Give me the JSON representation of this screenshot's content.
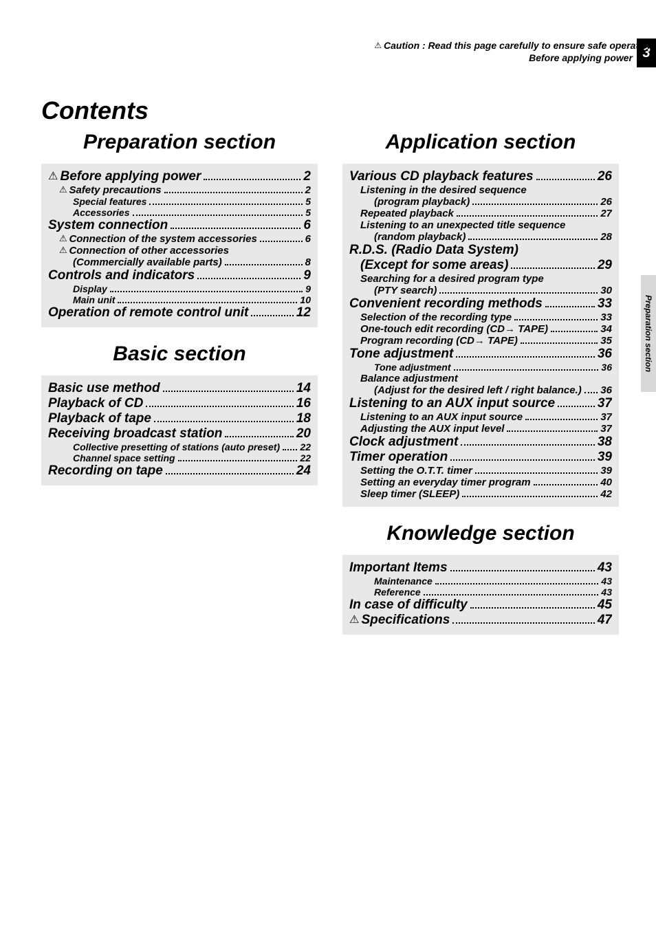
{
  "header": {
    "caution": "Caution : Read this page carefully to ensure safe operation.",
    "before": "Before applying power",
    "page_number": "3",
    "side_label": "Preparation section"
  },
  "title": "Contents",
  "left_col": {
    "sections": [
      {
        "title": "Preparation section",
        "entries": [
          {
            "level": 0,
            "warn": true,
            "label": "Before applying power",
            "page": "2"
          },
          {
            "level": 1,
            "warn": true,
            "label": "Safety precautions",
            "page": "2"
          },
          {
            "level": 2,
            "label": "Special features",
            "page": "5"
          },
          {
            "level": 2,
            "label": "Accessories",
            "page": "5"
          },
          {
            "level": 0,
            "label": "System connection",
            "page": "6"
          },
          {
            "level": 1,
            "warn": true,
            "label": "Connection of the system accessories",
            "page": "6"
          },
          {
            "level": 1,
            "warn": true,
            "label": "Connection of other accessories",
            "label2": "(Commercially available parts)",
            "page": "8"
          },
          {
            "level": 0,
            "label": "Controls and indicators",
            "page": "9"
          },
          {
            "level": 2,
            "label": "Display",
            "page": "9"
          },
          {
            "level": 2,
            "label": "Main unit",
            "page": "10"
          },
          {
            "level": 0,
            "label": "Operation of remote control unit",
            "page": "12"
          }
        ]
      },
      {
        "title": "Basic section",
        "entries": [
          {
            "level": 0,
            "label": "Basic use method",
            "page": "14"
          },
          {
            "level": 0,
            "label": "Playback of CD",
            "page": "16"
          },
          {
            "level": 0,
            "label": "Playback of tape",
            "page": "18"
          },
          {
            "level": 0,
            "label": "Receiving broadcast station",
            "page": "20"
          },
          {
            "level": 2,
            "label": "Collective presetting of stations (auto preset)",
            "page": "22"
          },
          {
            "level": 2,
            "label": "Channel space setting",
            "page": "22"
          },
          {
            "level": 0,
            "label": "Recording on tape",
            "page": "24"
          }
        ]
      }
    ]
  },
  "right_col": {
    "sections": [
      {
        "title": "Application section",
        "entries": [
          {
            "level": 0,
            "label": "Various CD playback features",
            "page": "26"
          },
          {
            "level": 1,
            "label": "Listening in the desired sequence",
            "label2": "(program playback)",
            "page": "26"
          },
          {
            "level": 1,
            "label": "Repeated playback",
            "page": "27"
          },
          {
            "level": 1,
            "label": "Listening to an unexpected title sequence",
            "label2": "(random playback)",
            "page": "28"
          },
          {
            "level": 0,
            "label": "R.D.S. (Radio Data System)",
            "label2": "(Except for some areas)",
            "page": "29"
          },
          {
            "level": 1,
            "label": "Searching for a desired program type",
            "label2": "(PTY search)",
            "page": "30"
          },
          {
            "level": 0,
            "label": "Convenient recording methods",
            "page": "33"
          },
          {
            "level": 1,
            "label": "Selection of the recording type",
            "page": "33"
          },
          {
            "level": 1,
            "label": "One-touch edit recording (CD→ TAPE)",
            "page": "34"
          },
          {
            "level": 1,
            "label": "Program recording (CD→ TAPE)",
            "page": "35"
          },
          {
            "level": 0,
            "label": "Tone adjustment",
            "page": "36"
          },
          {
            "level": 2,
            "label": "Tone adjustment",
            "page": "36"
          },
          {
            "level": 1,
            "label": "Balance adjustment",
            "label2": "(Adjust for the desired left / right balance.)",
            "page": "36"
          },
          {
            "level": 0,
            "label": "Listening to an AUX input source",
            "page": "37"
          },
          {
            "level": 1,
            "label": "Listening to an AUX input source",
            "page": "37"
          },
          {
            "level": 1,
            "label": "Adjusting the AUX input level",
            "page": "37"
          },
          {
            "level": 0,
            "label": "Clock adjustment",
            "page": "38"
          },
          {
            "level": 0,
            "label": "Timer operation",
            "page": "39"
          },
          {
            "level": 1,
            "label": "Setting the O.T.T. timer",
            "page": "39"
          },
          {
            "level": 1,
            "label": "Setting an everyday timer program",
            "page": "40"
          },
          {
            "level": 1,
            "label": "Sleep timer (SLEEP)",
            "page": "42"
          }
        ]
      },
      {
        "title": "Knowledge section",
        "entries": [
          {
            "level": 0,
            "label": "Important Items",
            "page": "43"
          },
          {
            "level": 2,
            "label": "Maintenance",
            "page": "43"
          },
          {
            "level": 2,
            "label": "Reference",
            "page": "43"
          },
          {
            "level": 0,
            "label": "In case of difficulty",
            "page": "45"
          },
          {
            "level": 0,
            "warn": true,
            "label": "Specifications",
            "page": "47"
          }
        ]
      }
    ]
  }
}
